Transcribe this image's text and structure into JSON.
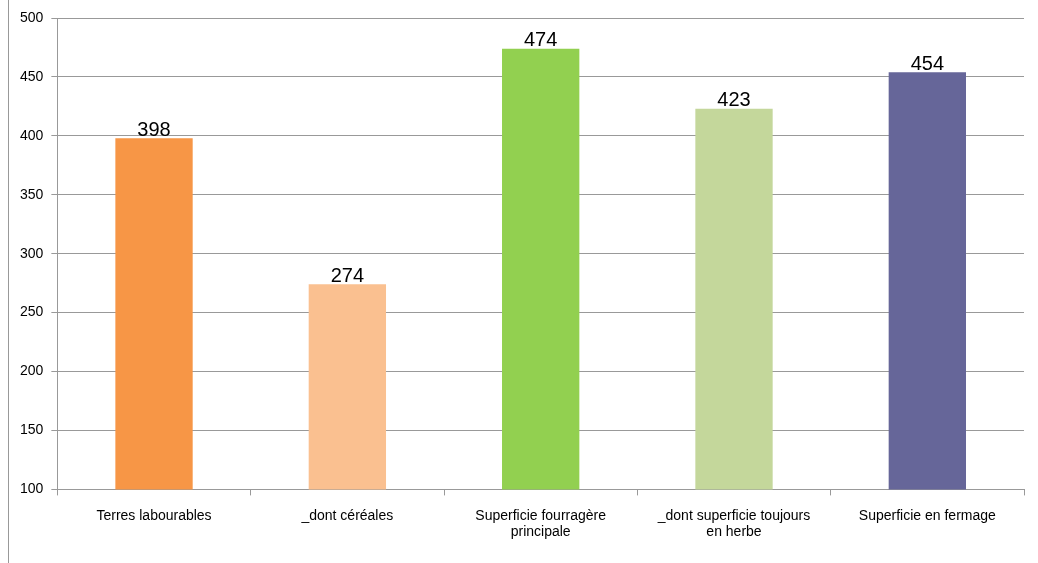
{
  "chart_data": {
    "type": "bar",
    "categories": [
      "Terres labourables",
      "_dont céréales",
      "Superficie fourragère principale",
      "_dont superficie toujours en herbe",
      "Superficie en fermage"
    ],
    "values": [
      398,
      274,
      474,
      423,
      454
    ],
    "colors": [
      "#f79646",
      "#fac090",
      "#92d050",
      "#c4d79b",
      "#666699"
    ],
    "ylim": [
      100,
      500
    ],
    "yticks": [
      100,
      150,
      200,
      250,
      300,
      350,
      400,
      450,
      500
    ],
    "grid": "y",
    "data_labels": true,
    "legend": false
  }
}
